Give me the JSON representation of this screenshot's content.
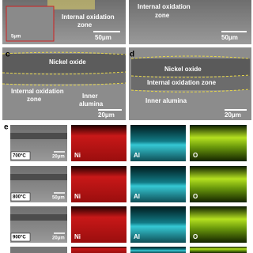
{
  "panel_a": {
    "annotation": [
      "Internal oxidation",
      "zone"
    ],
    "scale_bar": "50μm",
    "inset_scale": "5μm"
  },
  "panel_b": {
    "annotation": [
      "Internal oxidation",
      "zone"
    ],
    "scale_bar": "50μm"
  },
  "panel_c": {
    "letter": "c",
    "top_layer": "Nickel oxide",
    "middle_layer": [
      "Internal oxidation",
      "zone"
    ],
    "bottom_layer": [
      "Inner",
      "alumina"
    ],
    "scale_bar": "20μm"
  },
  "panel_d": {
    "letter": "d",
    "top_layer": "Nickel oxide",
    "middle_layer": "Internal oxidation zone",
    "bottom_layer": "Inner alumina",
    "scale_bar": "20μm"
  },
  "panel_e": {
    "letter": "e",
    "rows": [
      {
        "temperature": "700°C",
        "scale_bar": "20μm",
        "maps": [
          "Ni",
          "Al",
          "O"
        ]
      },
      {
        "temperature": "800°C",
        "scale_bar": "50μm",
        "maps": [
          "Ni",
          "Al",
          "O"
        ]
      },
      {
        "temperature": "900°C",
        "scale_bar": "20μm",
        "maps": [
          "Ni",
          "Al",
          "O"
        ]
      }
    ]
  }
}
